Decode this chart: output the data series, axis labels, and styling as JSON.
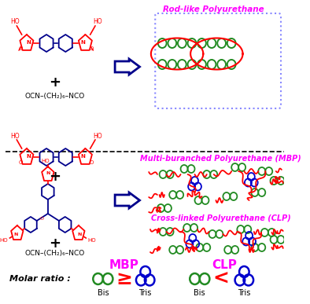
{
  "rod_label": "Rod-like Polyurethane",
  "mbp_label": "Multi-buranched Polyurethane (MBP)",
  "clp_label": "Cross-linked Polyurethane (CLP)",
  "mbp_short": "MBP",
  "clp_short": "CLP",
  "molar_ratio_label": "Molar ratio :",
  "bis_label": "Bis",
  "tris_label": "Tris",
  "isocyanate_text": "OCN–(CH₂)₆–NCO",
  "color_red": "#FF0000",
  "color_green": "#228B22",
  "color_blue": "#0000CC",
  "color_magenta": "#FF00FF",
  "color_black": "#000000",
  "color_navy": "#00008B",
  "color_dotbox": "#8888FF",
  "bg_color": "#FFFFFF"
}
